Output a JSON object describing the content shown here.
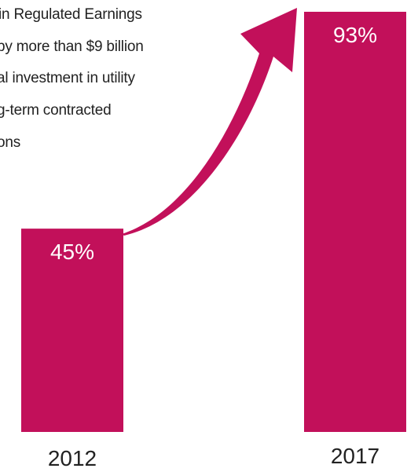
{
  "chart_data": {
    "type": "bar",
    "categories": [
      "2012",
      "2017"
    ],
    "values": [
      45,
      93
    ],
    "value_labels": [
      "45%",
      "93%"
    ],
    "ylim": [
      0,
      100
    ],
    "bar_color": "#c2105a",
    "grid": false,
    "legend": "none"
  },
  "annotation": {
    "lines": [
      "in Regulated Earnings",
      "by more than $9 billion",
      "al investment in utility",
      "g-term contracted",
      "ons"
    ]
  },
  "arrow": {
    "color": "#c2105a",
    "icon": "curved-arrow-icon"
  },
  "text_color": "#222222",
  "label_color": "#ffffff"
}
